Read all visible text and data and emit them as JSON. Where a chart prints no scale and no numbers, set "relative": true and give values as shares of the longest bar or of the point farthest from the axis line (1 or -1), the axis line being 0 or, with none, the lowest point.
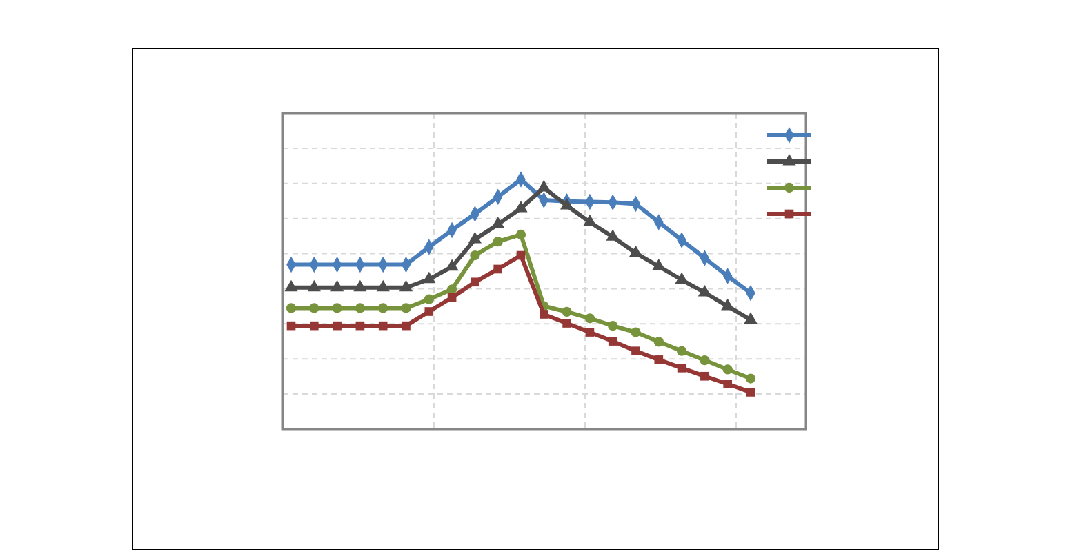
{
  "chart_data": {
    "type": "line",
    "relative": true,
    "grid": true,
    "categories": [
      null,
      null,
      null,
      null,
      null,
      null,
      null,
      null,
      null,
      null,
      null,
      null,
      null,
      null,
      null,
      null,
      null,
      null,
      null,
      null,
      null
    ],
    "series": [
      {
        "color": "#4a7ebb",
        "marker": "diamond",
        "values": [
          0.659,
          0.659,
          0.659,
          0.659,
          0.659,
          0.659,
          0.729,
          0.797,
          0.862,
          0.93,
          1.0,
          0.917,
          0.912,
          0.91,
          0.908,
          0.902,
          0.829,
          0.757,
          0.685,
          0.613,
          0.545
        ]
      },
      {
        "color": "#4d4d4d",
        "marker": "triangle",
        "values": [
          0.567,
          0.567,
          0.567,
          0.567,
          0.567,
          0.567,
          0.6,
          0.65,
          0.76,
          0.82,
          0.884,
          0.967,
          0.895,
          0.829,
          0.77,
          0.705,
          0.652,
          0.598,
          0.547,
          0.492,
          0.438
        ]
      },
      {
        "color": "#77933c",
        "marker": "circle",
        "values": [
          0.485,
          0.485,
          0.485,
          0.485,
          0.485,
          0.485,
          0.52,
          0.56,
          0.696,
          0.751,
          0.779,
          0.493,
          0.47,
          0.444,
          0.414,
          0.388,
          0.35,
          0.313,
          0.276,
          0.239,
          0.203
        ]
      },
      {
        "color": "#953735",
        "marker": "square",
        "values": [
          0.414,
          0.414,
          0.414,
          0.414,
          0.414,
          0.414,
          0.471,
          0.527,
          0.589,
          0.641,
          0.696,
          0.46,
          0.424,
          0.388,
          0.352,
          0.313,
          0.278,
          0.245,
          0.212,
          0.181,
          0.148
        ]
      }
    ]
  }
}
